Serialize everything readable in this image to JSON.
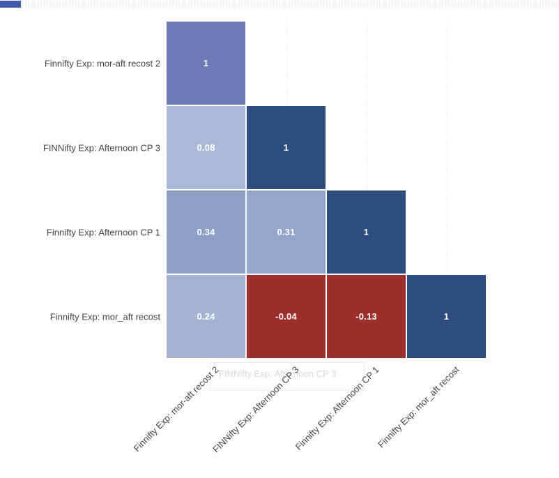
{
  "window": {
    "background": "#ffffff"
  },
  "loading_bar": {
    "fill_color": "#3e5cab"
  },
  "chart_data": {
    "type": "heatmap",
    "subtype": "correlation-matrix-lower-triangle",
    "title": "",
    "xlabel": "",
    "ylabel": "",
    "legend": "none",
    "grid": "faint dashed vertical gridlines visible in empty upper triangle",
    "categories_x": [
      "Finnifty Exp: mor-aft recost 2",
      "FINNifty Exp: Afternoon CP 3",
      "Finnifty Exp: Afternoon CP 1",
      "Finnifty Exp: mor_aft recost"
    ],
    "categories_y": [
      "Finnifty Exp: mor-aft recost 2",
      "FINNifty Exp: Afternoon CP 3",
      "Finnifty Exp: Afternoon CP 1",
      "Finnifty Exp: mor_aft recost"
    ],
    "matrix": [
      [
        1,
        null,
        null,
        null
      ],
      [
        0.08,
        1,
        null,
        null
      ],
      [
        0.34,
        0.31,
        1,
        null
      ],
      [
        0.24,
        -0.04,
        -0.13,
        1
      ]
    ],
    "cells": [
      {
        "row": 0,
        "col": 0,
        "value": 1,
        "label": "1",
        "color": "#6b7cb4"
      },
      {
        "row": 1,
        "col": 0,
        "value": 0.08,
        "label": "0.08",
        "color": "#aab9d5"
      },
      {
        "row": 1,
        "col": 1,
        "value": 1,
        "label": "1",
        "color": "#2e4d7e"
      },
      {
        "row": 2,
        "col": 0,
        "value": 0.34,
        "label": "0.34",
        "color": "#8ba0c4"
      },
      {
        "row": 2,
        "col": 1,
        "value": 0.31,
        "label": "0.31",
        "color": "#94a7ca"
      },
      {
        "row": 2,
        "col": 2,
        "value": 1,
        "label": "1",
        "color": "#2e4d7e"
      },
      {
        "row": 3,
        "col": 0,
        "value": 0.24,
        "label": "0.24",
        "color": "#a3b2d1"
      },
      {
        "row": 3,
        "col": 1,
        "value": -0.04,
        "label": "-0.04",
        "color": "#9e2e2b"
      },
      {
        "row": 3,
        "col": 2,
        "value": -0.13,
        "label": "-0.13",
        "color": "#9e2e2b"
      },
      {
        "row": 3,
        "col": 3,
        "value": 1,
        "label": "1",
        "color": "#2e4d7e"
      }
    ],
    "value_text_color": "#ffffff",
    "axis_label_color": "#444444",
    "color_legend": {
      "positive_strong": "#2e4d7e",
      "positive_weak": "#aab9d5",
      "negative": "#9e2e2b"
    }
  },
  "tooltip": {
    "text": "FINNifty Exp: Afternoon CP 3",
    "text_color": "#d9d9d9"
  }
}
